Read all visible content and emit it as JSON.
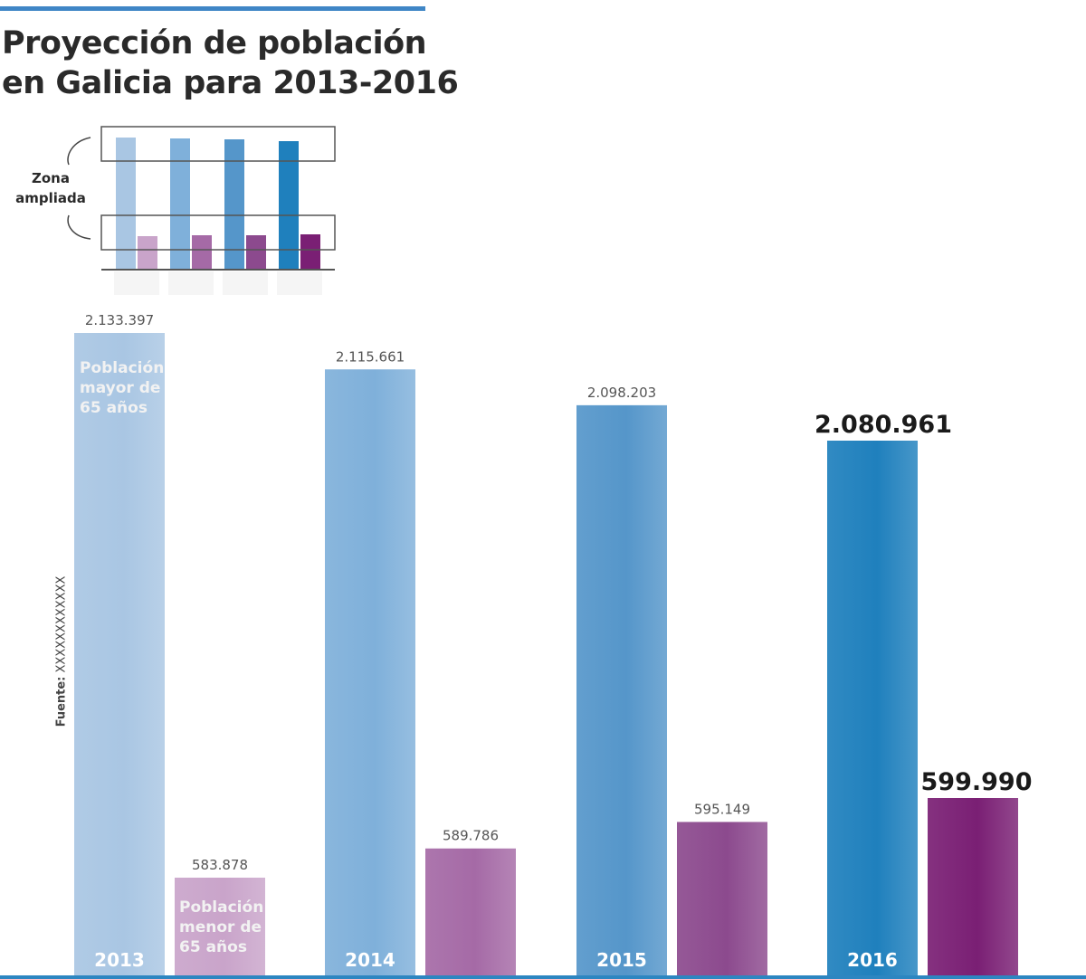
{
  "title_lines": [
    "Proyección de población",
    "en Galicia para 2013-2016"
  ],
  "source": {
    "label": "Fuente:",
    "value": "XXXXXXXXXXXX"
  },
  "inset": {
    "label_lines": [
      "Zona",
      "ampliada"
    ]
  },
  "colors": {
    "accent_rule": "#3f86c6",
    "older_bars": [
      "#a9c6e3",
      "#7fb0da",
      "#5596ca",
      "#1f80bd"
    ],
    "younger_bars": [
      "#c9a4ca",
      "#a56aa6",
      "#8c4a8e",
      "#7a1f74"
    ],
    "baseline": "#2d86c1"
  },
  "chart_data": {
    "type": "bar",
    "categories": [
      "2013",
      "2014",
      "2015",
      "2016"
    ],
    "series": [
      {
        "name": "Población mayor de 65 años",
        "values": [
          2133397,
          2115661,
          2098203,
          2080961
        ]
      },
      {
        "name": "Población menor de 65 años",
        "values": [
          583878,
          589786,
          595149,
          599990
        ]
      }
    ],
    "value_labels": [
      [
        "2.133.397",
        "2.115.661",
        "2.098.203",
        "2.080.961"
      ],
      [
        "583.878",
        "589.786",
        "595.149",
        "599.990"
      ]
    ],
    "series_labels": [
      [
        "Población",
        "mayor de",
        "65 años"
      ],
      [
        "Población",
        "menor de",
        "65 años"
      ]
    ],
    "axis_breaks": true
  }
}
